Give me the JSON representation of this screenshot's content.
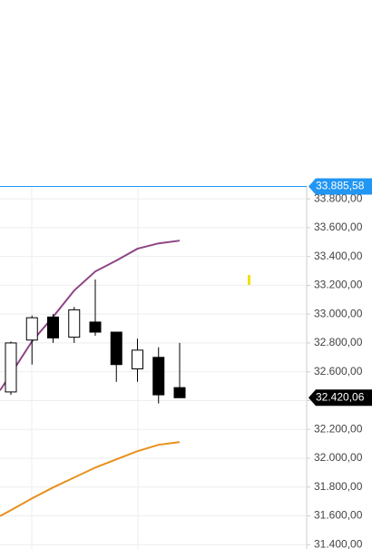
{
  "chart_data": {
    "type": "candlestick",
    "categories": [
      null,
      null,
      null,
      null,
      null,
      null,
      null,
      null,
      null
    ],
    "open": [
      32460,
      32820,
      32980,
      32840,
      32945,
      32875,
      32620,
      32700,
      32490
    ],
    "high": [
      32810,
      32990,
      33000,
      33050,
      33240,
      32875,
      32830,
      32770,
      32800
    ],
    "low": [
      32440,
      32650,
      32800,
      32800,
      32850,
      32530,
      32530,
      32380,
      32420
    ],
    "close": [
      32800,
      32975,
      32835,
      33030,
      32875,
      32650,
      32750,
      32440,
      32420
    ],
    "up_color": "#ffffff",
    "down_color": "#000000",
    "series": [
      {
        "color": "#8e4585",
        "values": [
          32584,
          32811,
          32981,
          33164,
          33296,
          33372,
          33454,
          33491,
          33510
        ]
      },
      {
        "color": "#e8901c",
        "values": [
          31639,
          31721,
          31797,
          31866,
          31935,
          31992,
          32049,
          32093,
          32112
        ]
      }
    ],
    "price_lines": [
      {
        "value": 33885.58,
        "label": "33.885,58",
        "color": "#2196f3"
      },
      {
        "value": 32420.06,
        "label": "32.420,06",
        "color": "#000000"
      }
    ],
    "ylim": [
      31370,
      35180
    ],
    "yticks": [
      {
        "value": 31400,
        "label": "31.400,00"
      },
      {
        "value": 31600,
        "label": "31.600,00"
      },
      {
        "value": 31800,
        "label": "31.800,00"
      },
      {
        "value": 32000,
        "label": "32.000,00"
      },
      {
        "value": 32200,
        "label": "32.200,00"
      },
      {
        "value": 32400,
        "label": "32.400,00"
      },
      {
        "value": 32600,
        "label": "32.600,00"
      },
      {
        "value": 32800,
        "label": "32.800,00"
      },
      {
        "value": 33000,
        "label": "33.000,00"
      },
      {
        "value": 33200,
        "label": "33.200,00"
      },
      {
        "value": 33400,
        "label": "33.400,00"
      },
      {
        "value": 33600,
        "label": "33.600,00"
      },
      {
        "value": 33800,
        "label": "33.800,00"
      }
    ],
    "grid": true
  }
}
